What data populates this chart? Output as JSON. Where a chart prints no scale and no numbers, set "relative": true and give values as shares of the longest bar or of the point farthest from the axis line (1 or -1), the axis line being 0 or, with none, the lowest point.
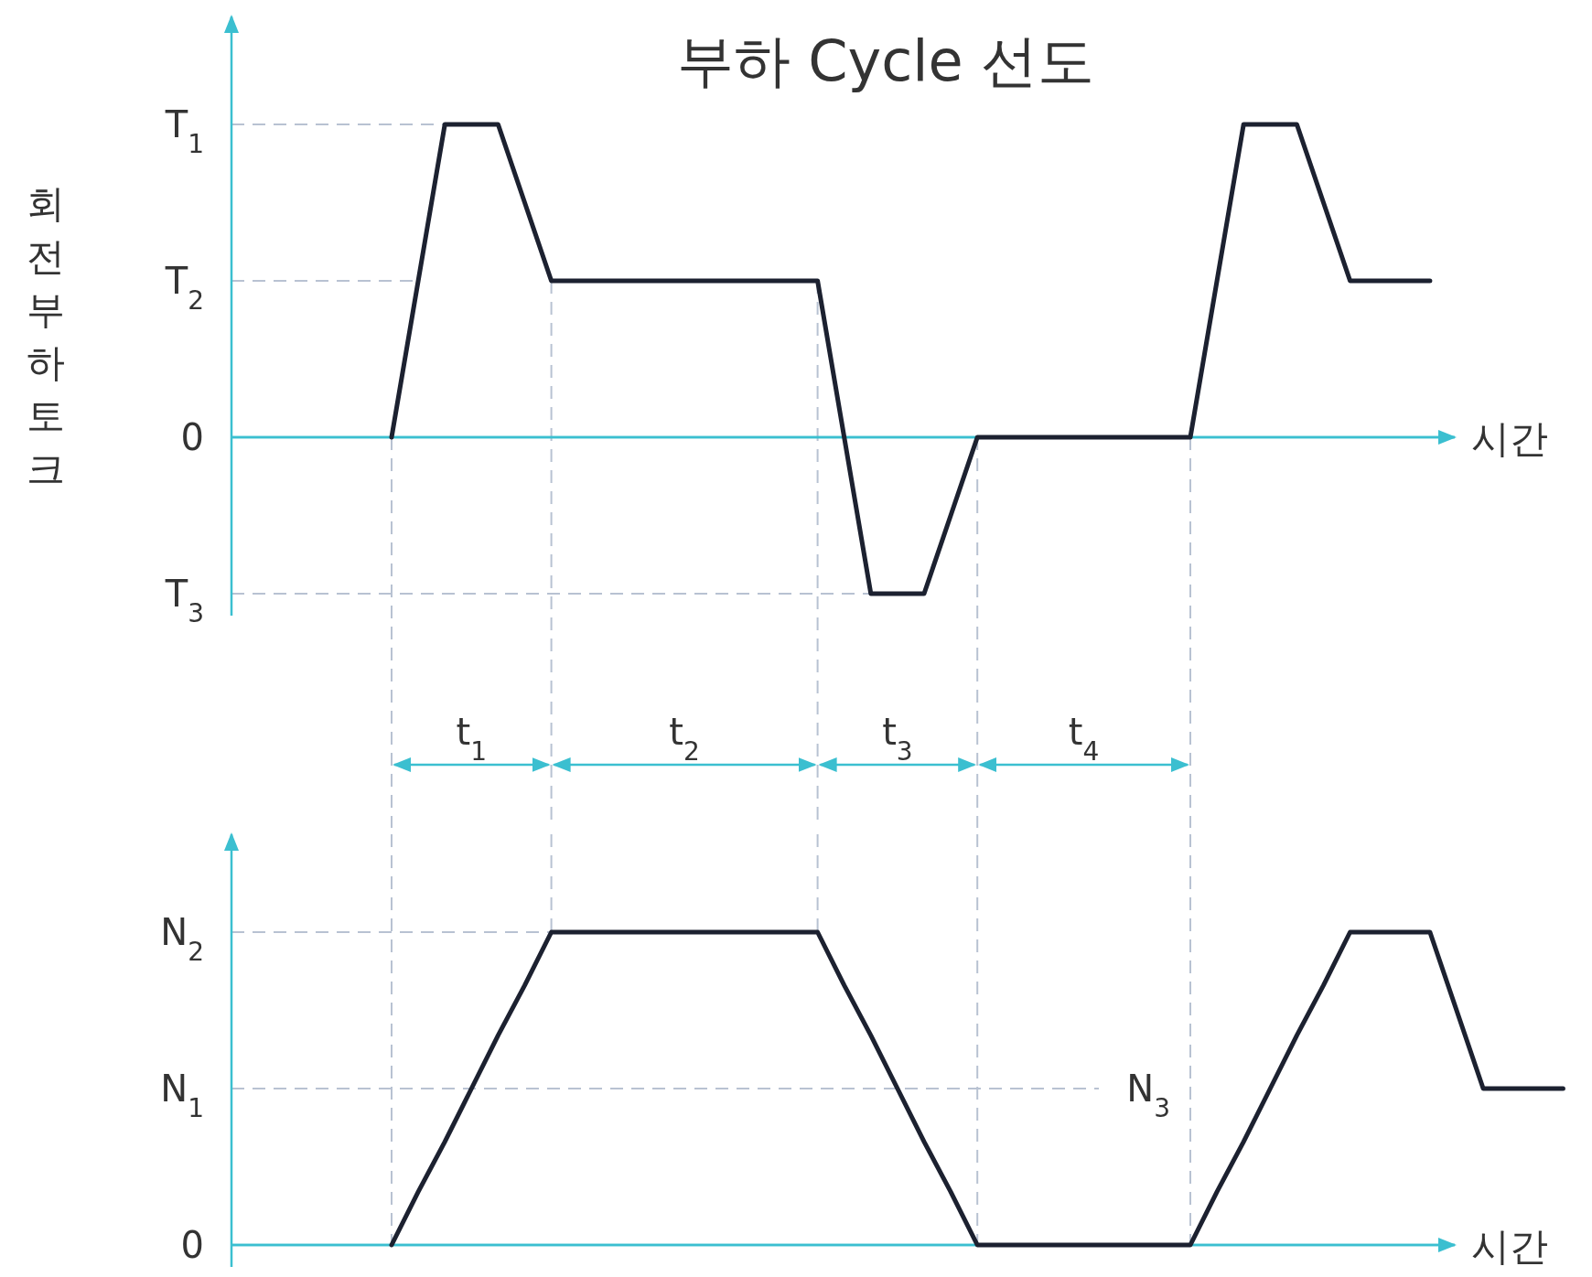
{
  "chart_data": [
    {
      "type": "line",
      "title": "부하 Cycle 선도",
      "xlabel": "시간",
      "ylabel": "회전부하토크",
      "relative": true,
      "grid": "x",
      "categories": [
        null,
        null,
        null,
        null,
        null,
        null,
        null,
        null,
        null,
        null,
        null,
        null,
        null,
        null,
        null,
        null,
        null,
        null,
        null,
        null,
        null,
        null,
        null,
        null,
        null,
        null,
        null,
        null,
        null,
        null,
        null,
        null,
        null,
        null,
        null,
        null,
        null,
        null,
        null,
        null
      ],
      "series": [
        {
          "color": "#1c2130",
          "values": [
            0,
            0.5,
            1,
            1,
            1,
            0.75,
            0.5,
            0.5,
            0.5,
            0.5,
            0.5,
            0.5,
            0.5,
            0.5,
            0.5,
            0.5,
            0.5,
            0,
            -0.5,
            -0.5,
            -0.5,
            -0.25,
            0,
            0,
            0,
            0,
            0,
            0,
            0,
            0,
            0,
            0.5,
            1,
            1,
            1,
            0.75,
            0.5,
            0.5,
            0.5,
            0.5
          ]
        }
      ],
      "ref_lines": [
        {
          "axis": "y",
          "value": 1,
          "label": "T$_{1}$",
          "color": "#b8c2d2",
          "line_style": "dashed"
        },
        {
          "axis": "y",
          "value": 0.5,
          "label": "T$_{2}$",
          "color": "#b8c2d2",
          "line_style": "dashed"
        },
        {
          "axis": "y",
          "value": 0,
          "label": "0",
          "color": "#3bbfd0",
          "line_style": "solid"
        },
        {
          "axis": "y",
          "value": -0.5,
          "label": "T$_{3}$",
          "color": "#b8c2d2",
          "line_style": "dashed"
        }
      ],
      "annotations": [
        "t$_{1}$",
        "t$_{2}$",
        "t$_{3}$",
        "t$_{4}$"
      ]
    },
    {
      "type": "line",
      "xlabel": "시간",
      "relative": true,
      "categories": [
        null,
        null,
        null,
        null,
        null,
        null,
        null,
        null,
        null,
        null,
        null,
        null,
        null,
        null,
        null,
        null,
        null,
        null,
        null,
        null,
        null,
        null,
        null,
        null,
        null,
        null,
        null,
        null,
        null,
        null,
        null,
        null,
        null,
        null,
        null,
        null,
        null,
        null,
        null,
        null,
        null,
        null,
        null,
        null,
        null
      ],
      "series": [
        {
          "color": "#1c2130",
          "values": [
            0,
            0.17,
            0.33,
            0.5,
            0.67,
            0.83,
            1,
            1,
            1,
            1,
            1,
            1,
            1,
            1,
            1,
            1,
            1,
            0.83,
            0.67,
            0.5,
            0.33,
            0.17,
            0,
            0,
            0,
            0,
            0,
            0,
            0,
            0,
            0,
            0.17,
            0.33,
            0.5,
            0.67,
            0.83,
            1,
            1,
            1,
            1,
            0.75,
            0.5,
            0.5,
            0.5,
            0.5
          ]
        }
      ],
      "ref_lines": [
        {
          "axis": "y",
          "value": 1,
          "label": "N$_{2}$",
          "color": "#b8c2d2",
          "line_style": "dashed"
        },
        {
          "axis": "y",
          "value": 0.5,
          "label": "N$_{1}$",
          "color": "#b8c2d2",
          "line_style": "dashed"
        },
        {
          "axis": "y",
          "value": 0,
          "label": "0",
          "color": "#3bbfd0",
          "line_style": "solid"
        }
      ],
      "grid": "x",
      "annotations": [
        "N$_{3}$"
      ]
    }
  ]
}
